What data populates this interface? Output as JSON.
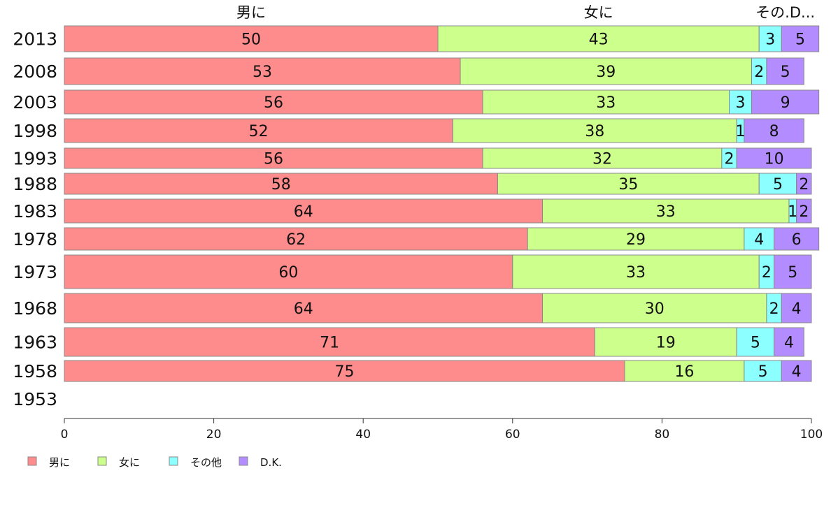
{
  "chart_data": {
    "type": "bar",
    "orientation": "horizontal",
    "stacked": true,
    "categories": [
      "2013",
      "2008",
      "2003",
      "1998",
      "1993",
      "1988",
      "1983",
      "1978",
      "1973",
      "1968",
      "1963",
      "1958",
      "1953"
    ],
    "series": [
      {
        "name": "男に",
        "color": "#ff8c8c",
        "values": [
          50,
          53,
          56,
          52,
          56,
          58,
          64,
          62,
          60,
          64,
          71,
          75,
          null
        ]
      },
      {
        "name": "女に",
        "color": "#ccff8c",
        "values": [
          43,
          39,
          33,
          38,
          32,
          35,
          33,
          29,
          33,
          30,
          19,
          16,
          null
        ]
      },
      {
        "name": "その他",
        "color": "#8cffff",
        "values": [
          3,
          2,
          3,
          1,
          2,
          5,
          1,
          4,
          2,
          2,
          5,
          5,
          null
        ]
      },
      {
        "name": "D.K.",
        "color": "#b38cff",
        "values": [
          5,
          5,
          9,
          8,
          10,
          2,
          2,
          6,
          5,
          4,
          4,
          4,
          null
        ]
      }
    ],
    "column_headers": [
      "男に",
      "女に",
      "その.D..."
    ],
    "xlim": [
      0,
      100
    ],
    "xticks": [
      "0",
      "20",
      "40",
      "60",
      "80",
      "100"
    ],
    "grid": false,
    "legend_position": "bottom-left"
  }
}
